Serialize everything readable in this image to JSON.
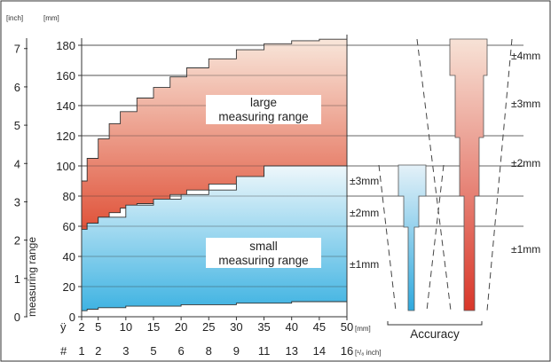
{
  "chart_data": {
    "type": "area",
    "yaxis": {
      "left_unit": "[inch]",
      "right_unit": "[mm]",
      "label": "measuring range",
      "inch_ticks": [
        "0",
        "1",
        "2",
        "3",
        "4",
        "5",
        "6",
        "7"
      ],
      "mm_ticks": [
        "0",
        "20",
        "40",
        "60",
        "80",
        "100",
        "120",
        "140",
        "160",
        "180"
      ],
      "ylim_mm": [
        0,
        184
      ]
    },
    "xaxis": {
      "row1_prefix": "ÿ",
      "row1_ticks": [
        "2",
        "5",
        "10",
        "15",
        "20",
        "25",
        "30",
        "35",
        "40",
        "45",
        "50"
      ],
      "row1_unit": "[mm]",
      "row2_prefix": "#",
      "row2_ticks": [
        "1",
        "2",
        "3",
        "5",
        "6",
        "8",
        "9",
        "11",
        "13",
        "14",
        "16"
      ],
      "row2_unit": "[¹/₈ inch]",
      "xlim_mm": [
        2,
        50
      ]
    },
    "series": [
      {
        "name": "large measuring range",
        "color_top": "#f7e3d6",
        "color_bottom": "#e05a3c",
        "x": [
          2,
          3,
          5,
          7,
          9,
          12,
          15,
          18,
          21,
          25,
          30,
          35,
          40,
          45,
          50
        ],
        "upper": [
          90,
          105,
          118,
          128,
          136,
          145,
          152,
          159,
          165,
          171,
          177,
          181,
          183,
          184,
          184
        ],
        "lower": [
          58,
          62,
          66,
          69,
          72,
          75,
          78,
          81,
          84,
          88,
          93,
          98,
          100,
          100,
          100
        ]
      },
      {
        "name": "small measuring range",
        "color_top": "#e9f5fb",
        "color_bottom": "#4ab7e3",
        "x": [
          2,
          3,
          5,
          10,
          15,
          20,
          25,
          30,
          35,
          40,
          45,
          50
        ],
        "upper": [
          58,
          62,
          66,
          74,
          78,
          81,
          84,
          93,
          100,
          100,
          100,
          100
        ],
        "lower": [
          4,
          5,
          6,
          7,
          7,
          8,
          8,
          9,
          9,
          10,
          10,
          10
        ]
      }
    ],
    "annotations": {
      "large": [
        "large",
        "measuring range"
      ],
      "small": [
        "small",
        "measuring range"
      ]
    },
    "accuracy": {
      "title": "Accuracy",
      "small_labels": [
        "±3mm",
        "±2mm",
        "±1mm"
      ],
      "large_labels": [
        "±4mm",
        "±3mm",
        "±2mm",
        "±1mm"
      ]
    }
  }
}
